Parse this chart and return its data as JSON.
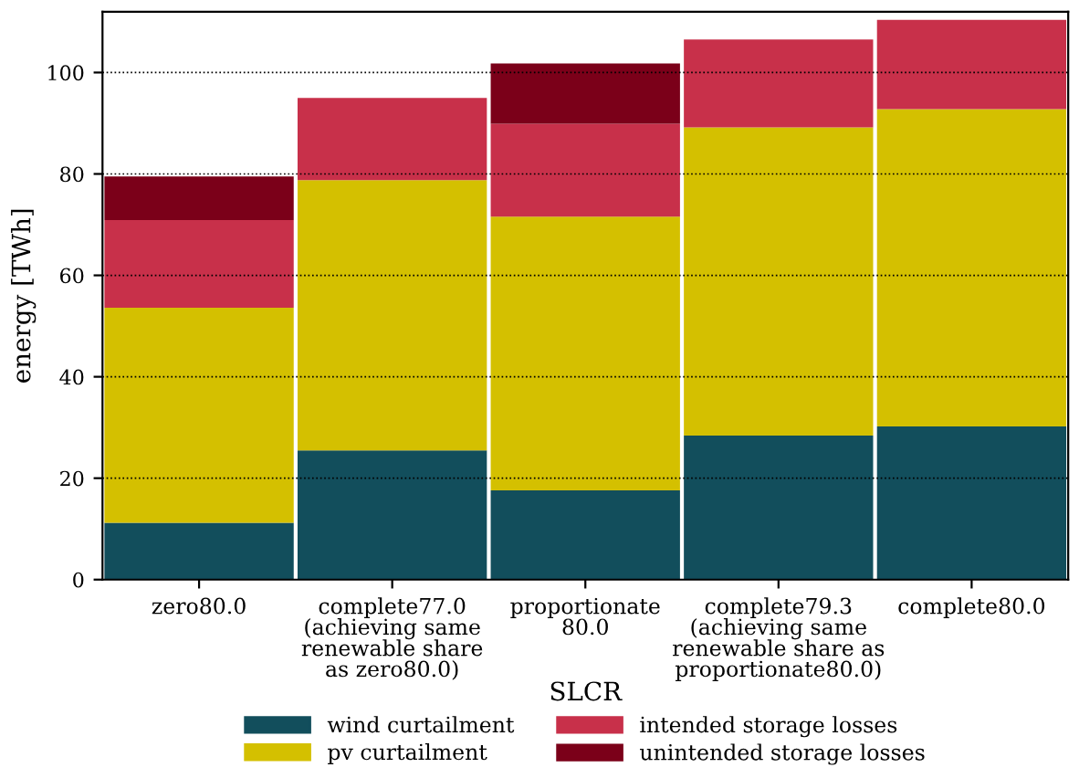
{
  "chart_data": {
    "type": "bar",
    "stacked": true,
    "categories": [
      "zero80.0",
      "complete77.0\n(achieving same\nrenewable share\nas zero80.0)",
      "proportionate\n80.0",
      "complete79.3\n(achieving same\nrenewable share as\nproportionate80.0)",
      "complete80.0"
    ],
    "series": [
      {
        "name": "wind curtailment",
        "color": "#124e5c",
        "values": [
          11.2,
          25.5,
          17.6,
          28.4,
          30.2
        ]
      },
      {
        "name": "pv curtailment",
        "color": "#d4c000",
        "values": [
          42.4,
          53.3,
          54.0,
          60.8,
          62.6
        ]
      },
      {
        "name": "intended storage losses",
        "color": "#c8304a",
        "values": [
          17.3,
          16.2,
          18.3,
          17.3,
          17.6
        ]
      },
      {
        "name": "unintended storage losses",
        "color": "#7b0019",
        "values": [
          8.6,
          0,
          11.9,
          0,
          0
        ]
      }
    ],
    "xlabel": "SLCR",
    "ylabel": "energy [TWh]",
    "ylim": [
      0,
      112
    ],
    "yticks": [
      0,
      20,
      40,
      60,
      80,
      100
    ],
    "grid": "y",
    "legend": "bottom"
  }
}
